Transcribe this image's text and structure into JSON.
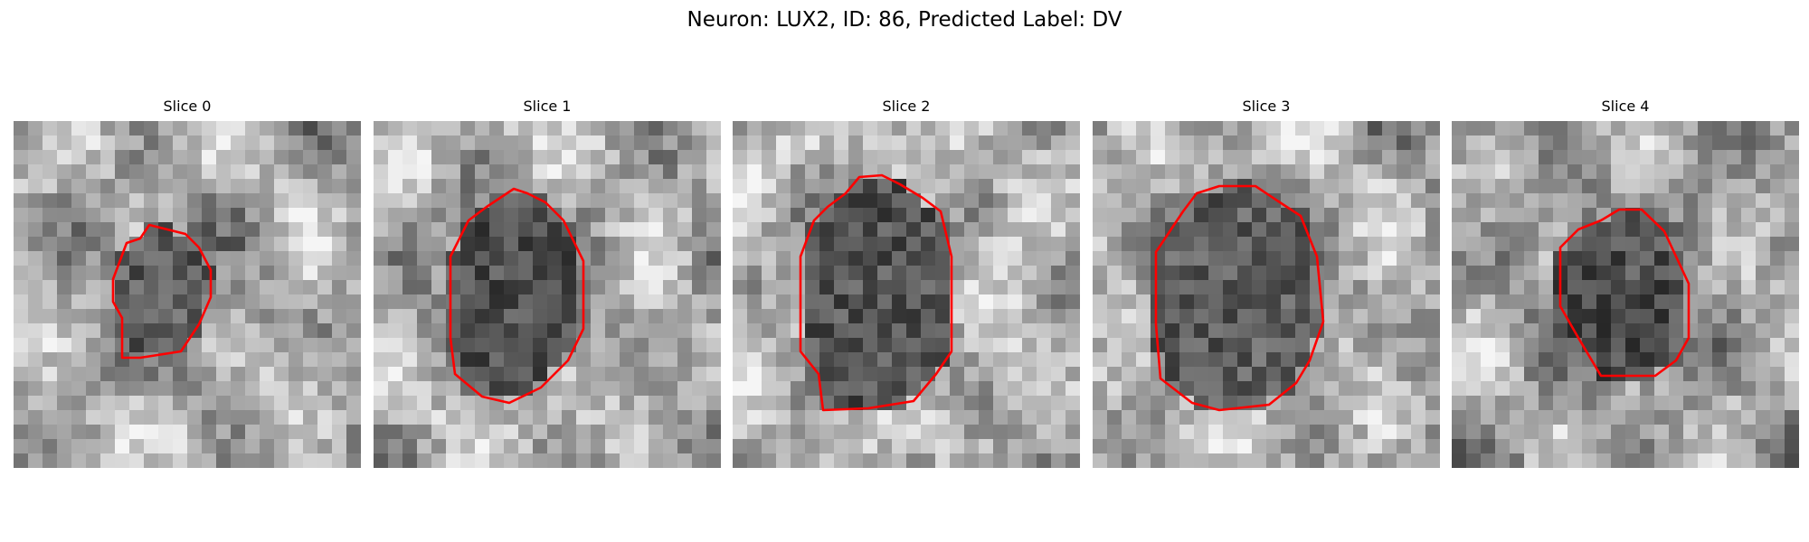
{
  "figure": {
    "title": "Neuron: LUX2, ID: 86, Predicted Label: DV"
  },
  "panels": [
    {
      "title": "Slice 0",
      "seed": 11,
      "base": 148,
      "dark": 92,
      "outline_color": "#ff0000"
    },
    {
      "title": "Slice 1",
      "seed": 23,
      "base": 150,
      "dark": 80,
      "outline_color": "#ff0000"
    },
    {
      "title": "Slice 2",
      "seed": 37,
      "base": 158,
      "dark": 82,
      "outline_color": "#ff0000"
    },
    {
      "title": "Slice 3",
      "seed": 41,
      "base": 150,
      "dark": 92,
      "outline_color": "#ff0000"
    },
    {
      "title": "Slice 4",
      "seed": 53,
      "base": 138,
      "dark": 78,
      "outline_color": "#ff0000"
    }
  ]
}
